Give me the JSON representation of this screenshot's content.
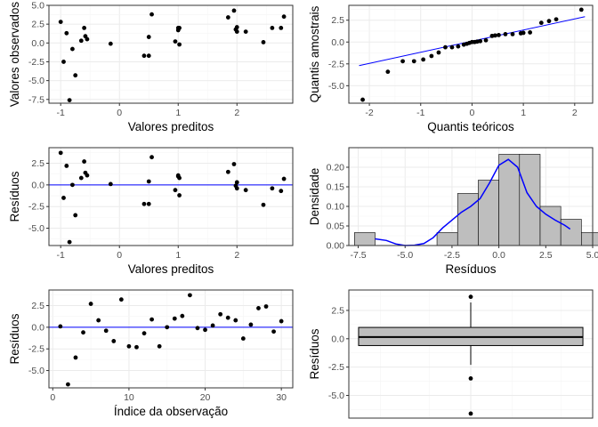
{
  "colors": {
    "panel_bg": "#ffffff",
    "panel_border": "#333333",
    "grid_major": "#ebebeb",
    "grid_minor": "#f5f5f5",
    "point": "#000000",
    "line": "#0000ff",
    "bar_fill": "#bebebe",
    "bar_stroke": "#000000"
  },
  "chart_data": [
    {
      "id": "p1",
      "type": "scatter",
      "xlabel": "Valores preditos",
      "ylabel": "Valores observados",
      "xlim": [
        -1.2,
        2.95
      ],
      "ylim": [
        -8.0,
        5.0
      ],
      "xticks": [
        -1,
        0,
        1,
        2
      ],
      "xtick_labels": [
        "-1",
        "0",
        "1",
        "2"
      ],
      "yticks": [
        -7.5,
        -5.0,
        -2.5,
        0.0,
        2.5,
        5.0
      ],
      "ytick_labels": [
        "-7.5",
        "-5.0",
        "-2.5",
        "0.0",
        "2.5",
        "5.0"
      ],
      "grid": true,
      "points": [
        [
          -1.0,
          2.8
        ],
        [
          -0.95,
          -2.5
        ],
        [
          -0.9,
          1.3
        ],
        [
          -0.85,
          -7.6
        ],
        [
          -0.8,
          -0.8
        ],
        [
          -0.75,
          -4.3
        ],
        [
          -0.65,
          0.3
        ],
        [
          -0.6,
          2.0
        ],
        [
          -0.58,
          0.9
        ],
        [
          -0.55,
          0.5
        ],
        [
          -0.15,
          -0.1
        ],
        [
          0.42,
          -1.7
        ],
        [
          0.5,
          -1.7
        ],
        [
          0.5,
          0.8
        ],
        [
          0.55,
          3.8
        ],
        [
          0.95,
          0.2
        ],
        [
          1.0,
          1.7
        ],
        [
          1.0,
          2.0
        ],
        [
          1.02,
          -0.2
        ],
        [
          1.02,
          2.0
        ],
        [
          1.85,
          3.4
        ],
        [
          1.95,
          4.3
        ],
        [
          1.98,
          1.8
        ],
        [
          2.0,
          1.5
        ],
        [
          2.0,
          2.1
        ],
        [
          2.15,
          1.5
        ],
        [
          2.45,
          0.1
        ],
        [
          2.6,
          2.0
        ],
        [
          2.75,
          2.0
        ],
        [
          2.8,
          3.5
        ]
      ]
    },
    {
      "id": "p2",
      "type": "scatter",
      "xlabel": "Quantis teóricos",
      "ylabel": "Quantis amostrais",
      "xlim": [
        -2.4,
        2.35
      ],
      "ylim": [
        -7.0,
        4.2
      ],
      "xticks": [
        -2,
        -1,
        0,
        1,
        2
      ],
      "xtick_labels": [
        "-2",
        "-1",
        "0",
        "1",
        "2"
      ],
      "yticks": [
        -5.0,
        -2.5,
        0.0,
        2.5
      ],
      "ytick_labels": [
        "-5.0",
        "-2.5",
        "0.0",
        "2.5"
      ],
      "grid": true,
      "points": [
        [
          -2.13,
          -6.6
        ],
        [
          -1.64,
          -3.4
        ],
        [
          -1.35,
          -2.2
        ],
        [
          -1.13,
          -2.2
        ],
        [
          -0.95,
          -2.0
        ],
        [
          -0.79,
          -1.6
        ],
        [
          -0.65,
          -1.2
        ],
        [
          -0.52,
          -0.6
        ],
        [
          -0.39,
          -0.6
        ],
        [
          -0.27,
          -0.5
        ],
        [
          -0.16,
          -0.3
        ],
        [
          -0.05,
          -0.1
        ],
        [
          0.05,
          0.0
        ],
        [
          0.16,
          0.1
        ],
        [
          0.27,
          0.2
        ],
        [
          0.39,
          0.7
        ],
        [
          0.52,
          0.8
        ],
        [
          0.65,
          0.9
        ],
        [
          0.79,
          0.9
        ],
        [
          0.95,
          1.0
        ],
        [
          1.13,
          1.1
        ],
        [
          1.35,
          2.2
        ],
        [
          1.64,
          2.6
        ],
        [
          2.13,
          3.7
        ],
        [
          0.0,
          0.0
        ],
        [
          -0.1,
          -0.2
        ],
        [
          0.1,
          0.05
        ],
        [
          0.45,
          0.75
        ],
        [
          1.0,
          1.05
        ],
        [
          1.5,
          2.4
        ]
      ],
      "reference_line": {
        "x": [
          -2.2,
          2.2
        ],
        "y": [
          -2.7,
          2.9
        ]
      }
    },
    {
      "id": "p3",
      "type": "scatter",
      "xlabel": "Valores preditos",
      "ylabel": "Resíduos",
      "xlim": [
        -1.2,
        2.95
      ],
      "ylim": [
        -7.0,
        4.3
      ],
      "xticks": [
        -1,
        0,
        1,
        2
      ],
      "xtick_labels": [
        "-1",
        "0",
        "1",
        "2"
      ],
      "yticks": [
        -5.0,
        -2.5,
        0.0,
        2.5
      ],
      "ytick_labels": [
        "-5.0",
        "-2.5",
        "0.0",
        "2.5"
      ],
      "grid": true,
      "hline": 0,
      "points": [
        [
          -1.0,
          3.7
        ],
        [
          -0.95,
          -1.5
        ],
        [
          -0.9,
          2.2
        ],
        [
          -0.85,
          -6.6
        ],
        [
          -0.8,
          0.0
        ],
        [
          -0.75,
          -3.5
        ],
        [
          -0.65,
          0.8
        ],
        [
          -0.6,
          2.7
        ],
        [
          -0.58,
          1.4
        ],
        [
          -0.55,
          1.1
        ],
        [
          -0.15,
          0.1
        ],
        [
          0.42,
          -2.2
        ],
        [
          0.5,
          -2.2
        ],
        [
          0.5,
          0.4
        ],
        [
          0.55,
          3.2
        ],
        [
          0.95,
          -0.6
        ],
        [
          1.0,
          1.0
        ],
        [
          1.0,
          1.1
        ],
        [
          1.02,
          -1.2
        ],
        [
          1.02,
          0.8
        ],
        [
          1.85,
          1.5
        ],
        [
          1.95,
          2.4
        ],
        [
          1.98,
          -0.1
        ],
        [
          2.0,
          -0.4
        ],
        [
          2.0,
          0.3
        ],
        [
          2.15,
          -0.6
        ],
        [
          2.45,
          -2.3
        ],
        [
          2.6,
          -0.4
        ],
        [
          2.75,
          -0.7
        ],
        [
          2.8,
          0.7
        ]
      ]
    },
    {
      "id": "p4",
      "type": "bar",
      "xlabel": "Resíduos",
      "ylabel": "Densidade",
      "xlim": [
        -8.0,
        5.0
      ],
      "ylim": [
        0.0,
        0.25
      ],
      "xticks": [
        -7.5,
        -5.0,
        -2.5,
        0.0,
        2.5,
        5.0
      ],
      "xtick_labels": [
        "-7.5",
        "-5.0",
        "-2.5",
        "0.0",
        "2.5",
        "5.0"
      ],
      "yticks": [
        0.0,
        0.05,
        0.1,
        0.15,
        0.2
      ],
      "ytick_labels": [
        "0.00",
        "0.05",
        "0.10",
        "0.15",
        "0.20"
      ],
      "grid": true,
      "bins": [
        [
          -7.7,
          -6.6,
          0.033
        ],
        [
          -6.6,
          -5.5,
          0.0
        ],
        [
          -5.5,
          -4.4,
          0.0
        ],
        [
          -4.4,
          -3.3,
          0.0
        ],
        [
          -3.3,
          -2.2,
          0.033
        ],
        [
          -2.2,
          -1.1,
          0.133
        ],
        [
          -1.1,
          0.0,
          0.167
        ],
        [
          0.0,
          1.1,
          0.233
        ],
        [
          1.1,
          2.2,
          0.233
        ],
        [
          2.2,
          3.3,
          0.1
        ],
        [
          3.3,
          4.4,
          0.067
        ],
        [
          4.4,
          5.5,
          0.033
        ]
      ],
      "density_curve": [
        [
          -6.6,
          0.017
        ],
        [
          -6.0,
          0.013
        ],
        [
          -5.5,
          0.004
        ],
        [
          -5.0,
          0.0
        ],
        [
          -4.5,
          0.001
        ],
        [
          -4.0,
          0.005
        ],
        [
          -3.5,
          0.02
        ],
        [
          -3.0,
          0.045
        ],
        [
          -2.5,
          0.065
        ],
        [
          -2.0,
          0.085
        ],
        [
          -1.5,
          0.1
        ],
        [
          -1.0,
          0.12
        ],
        [
          -0.5,
          0.16
        ],
        [
          0.0,
          0.205
        ],
        [
          0.5,
          0.22
        ],
        [
          1.0,
          0.2
        ],
        [
          1.5,
          0.135
        ],
        [
          2.0,
          0.1
        ],
        [
          2.5,
          0.08
        ],
        [
          3.0,
          0.065
        ],
        [
          3.5,
          0.052
        ],
        [
          3.8,
          0.042
        ]
      ]
    },
    {
      "id": "p5",
      "type": "scatter",
      "xlabel": "Índice da observação",
      "ylabel": "Resíduos",
      "xlim": [
        -0.5,
        31.5
      ],
      "ylim": [
        -7.0,
        4.3
      ],
      "xticks": [
        0,
        10,
        20,
        30
      ],
      "xtick_labels": [
        "0",
        "10",
        "20",
        "30"
      ],
      "yticks": [
        -5.0,
        -2.5,
        0.0,
        2.5
      ],
      "ytick_labels": [
        "-5.0",
        "-2.5",
        "0.0",
        "2.5"
      ],
      "grid": true,
      "hline": 0,
      "points": [
        [
          1,
          0.1
        ],
        [
          2,
          -6.6
        ],
        [
          3,
          -3.5
        ],
        [
          4,
          -0.6
        ],
        [
          5,
          2.7
        ],
        [
          6,
          0.8
        ],
        [
          7,
          -0.4
        ],
        [
          8,
          -1.6
        ],
        [
          9,
          3.2
        ],
        [
          10,
          -2.2
        ],
        [
          11,
          -2.3
        ],
        [
          12,
          -0.7
        ],
        [
          13,
          0.9
        ],
        [
          14,
          -2.2
        ],
        [
          15,
          0.0
        ],
        [
          16,
          1.0
        ],
        [
          17,
          1.3
        ],
        [
          18,
          3.7
        ],
        [
          19,
          -0.1
        ],
        [
          20,
          -0.3
        ],
        [
          21,
          0.2
        ],
        [
          22,
          1.5
        ],
        [
          23,
          1.1
        ],
        [
          24,
          0.8
        ],
        [
          25,
          -1.3
        ],
        [
          26,
          0.3
        ],
        [
          27,
          2.2
        ],
        [
          28,
          2.4
        ],
        [
          29,
          -0.5
        ],
        [
          30,
          0.7
        ]
      ]
    },
    {
      "id": "p6",
      "type": "box",
      "xlabel": "",
      "ylabel": "Resíduos",
      "xlim": [
        -0.5,
        0.5
      ],
      "ylim": [
        -7.0,
        4.3
      ],
      "yticks": [
        -5.0,
        -2.5,
        0.0,
        2.5
      ],
      "ytick_labels": [
        "-5.0",
        "-2.5",
        "0.0",
        "2.5"
      ],
      "grid": true,
      "box": {
        "q1": -0.6,
        "median": 0.15,
        "q3": 1.0,
        "whisker_low": -2.3,
        "whisker_high": 3.2
      },
      "outliers": [
        3.7,
        -3.5,
        -6.6
      ]
    }
  ]
}
